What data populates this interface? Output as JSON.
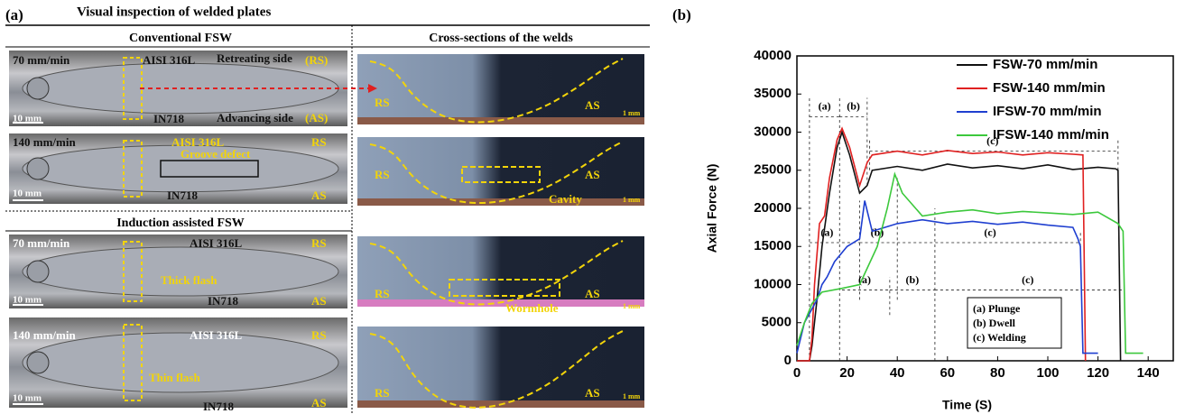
{
  "panel_a": {
    "label": "(a)",
    "title": "Visual inspection of welded plates",
    "conventional": "Conventional FSW",
    "cross_title": "Cross-sections of the welds",
    "induction": "Induction assisted FSW",
    "plates": [
      [
        "70 mm/min",
        "AISI 316L",
        "Retreating side",
        "(RS)",
        "10 mm",
        "IN718",
        "Advancing side",
        "(AS)"
      ],
      [
        "140 mm/min",
        "AISI 316L",
        "RS",
        "Groove defect",
        "10 mm",
        "IN718",
        "AS"
      ],
      [
        "70 mm/min",
        "AISI 316L",
        "RS",
        "Thick flash",
        "10 mm",
        "IN718",
        "AS"
      ],
      [
        "140 mm/min",
        "AISI 316L",
        "RS",
        "Thin flash",
        "10 mm",
        "IN718",
        "AS"
      ]
    ],
    "sections": [
      [
        "RS",
        "AS",
        "1 mm"
      ],
      [
        "RS",
        "AS",
        "Cavity",
        "1 mm"
      ],
      [
        "RS",
        "AS",
        "Wormhole",
        "1 mm"
      ],
      [
        "RS",
        "AS",
        "1 mm"
      ]
    ]
  },
  "chart_data": {
    "type": "line",
    "panel_label": "(b)",
    "x_label": "Time (S)",
    "y_label": "Axial Force (N)",
    "xlim": [
      0,
      150
    ],
    "ylim": [
      0,
      40000
    ],
    "xticks": [
      0,
      20,
      40,
      60,
      80,
      100,
      120,
      140
    ],
    "yticks": [
      0,
      5000,
      10000,
      15000,
      20000,
      25000,
      30000,
      35000,
      40000
    ],
    "legend": "top-right",
    "series": [
      {
        "name": "FSW-70 mm/min",
        "color": "#111111",
        "x": [
          0,
          5,
          6,
          8,
          10,
          13,
          16,
          18,
          21,
          25,
          28,
          30,
          40,
          50,
          60,
          70,
          80,
          90,
          100,
          110,
          120,
          127,
          128,
          129
        ],
        "values": [
          0,
          0,
          2000,
          8000,
          15000,
          22000,
          28000,
          30000,
          27000,
          22000,
          23000,
          25000,
          25500,
          25000,
          25800,
          25300,
          25600,
          25200,
          25700,
          25100,
          25400,
          25200,
          25000,
          0
        ]
      },
      {
        "name": "FSW-140 mm/min",
        "color": "#e02020",
        "x": [
          0,
          5,
          6,
          7,
          9,
          11,
          13,
          16,
          18,
          21,
          25,
          28,
          30,
          40,
          50,
          60,
          70,
          80,
          90,
          100,
          110,
          114,
          115
        ],
        "values": [
          0,
          0,
          3000,
          10000,
          18000,
          19000,
          24000,
          29000,
          30500,
          28000,
          23000,
          26000,
          27000,
          27500,
          27000,
          27600,
          27200,
          27400,
          27000,
          27300,
          27100,
          27000,
          0
        ]
      },
      {
        "name": "IFSW-70 mm/min",
        "color": "#1f3fd0",
        "x": [
          0,
          3,
          8,
          10,
          12,
          15,
          20,
          25,
          27,
          30,
          40,
          50,
          60,
          70,
          80,
          90,
          100,
          110,
          112,
          113,
          114,
          120
        ],
        "values": [
          1000,
          5000,
          8000,
          10000,
          11000,
          13000,
          15000,
          16000,
          21000,
          17000,
          18000,
          18500,
          18000,
          18300,
          17900,
          18200,
          17800,
          17500,
          16000,
          15000,
          1000,
          1000
        ]
      },
      {
        "name": "IFSW-140 mm/min",
        "color": "#3cc83c",
        "x": [
          0,
          3,
          6,
          10,
          18,
          25,
          32,
          36,
          39,
          42,
          50,
          60,
          70,
          80,
          90,
          100,
          110,
          120,
          128,
          130,
          131,
          138
        ],
        "values": [
          2000,
          5000,
          7500,
          9000,
          9500,
          10000,
          15000,
          20000,
          24500,
          22000,
          19000,
          19500,
          19800,
          19300,
          19600,
          19400,
          19200,
          19500,
          18000,
          17000,
          1000,
          1000
        ]
      }
    ],
    "phase_labels": [
      "(a)",
      "(b)",
      "(c)",
      "(a)",
      "(b)",
      "(c)",
      "(a)",
      "(b)",
      "(c)"
    ],
    "key": [
      "(a) Plunge",
      "(b) Dwell",
      "(c) Welding"
    ]
  }
}
